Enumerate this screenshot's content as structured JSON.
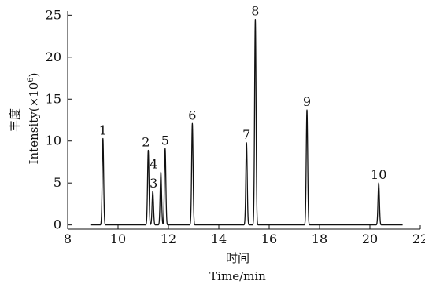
{
  "chart_data": {
    "type": "line",
    "title": "",
    "xlabel_cn": "时间",
    "xlabel_en": "Time/min",
    "ylabel_cn": "丰度",
    "ylabel_en_base": "Intensity(×10",
    "ylabel_en_exp": "6",
    "ylabel_en_close": ")",
    "xlim": [
      8,
      22
    ],
    "ylim": [
      -0.5,
      25.5
    ],
    "x_ticks": [
      8,
      10,
      12,
      14,
      16,
      18,
      20,
      22
    ],
    "y_ticks": [
      0,
      5,
      10,
      15,
      20,
      25
    ],
    "trace_range": [
      8.9,
      21.3
    ],
    "baseline": 0,
    "grid": false,
    "legend": "none",
    "peaks": [
      {
        "label": "1",
        "x": 9.4,
        "y": 10.3
      },
      {
        "label": "2",
        "x": 11.2,
        "y": 8.9
      },
      {
        "label": "3",
        "x": 11.38,
        "y": 4.0
      },
      {
        "label": "4",
        "x": 11.7,
        "y": 6.3
      },
      {
        "label": "5",
        "x": 11.87,
        "y": 9.1
      },
      {
        "label": "6",
        "x": 12.95,
        "y": 12.1
      },
      {
        "label": "7",
        "x": 15.1,
        "y": 9.8
      },
      {
        "label": "8",
        "x": 15.45,
        "y": 24.5
      },
      {
        "label": "9",
        "x": 17.5,
        "y": 13.7
      },
      {
        "label": "10",
        "x": 20.35,
        "y": 5.0
      }
    ]
  }
}
